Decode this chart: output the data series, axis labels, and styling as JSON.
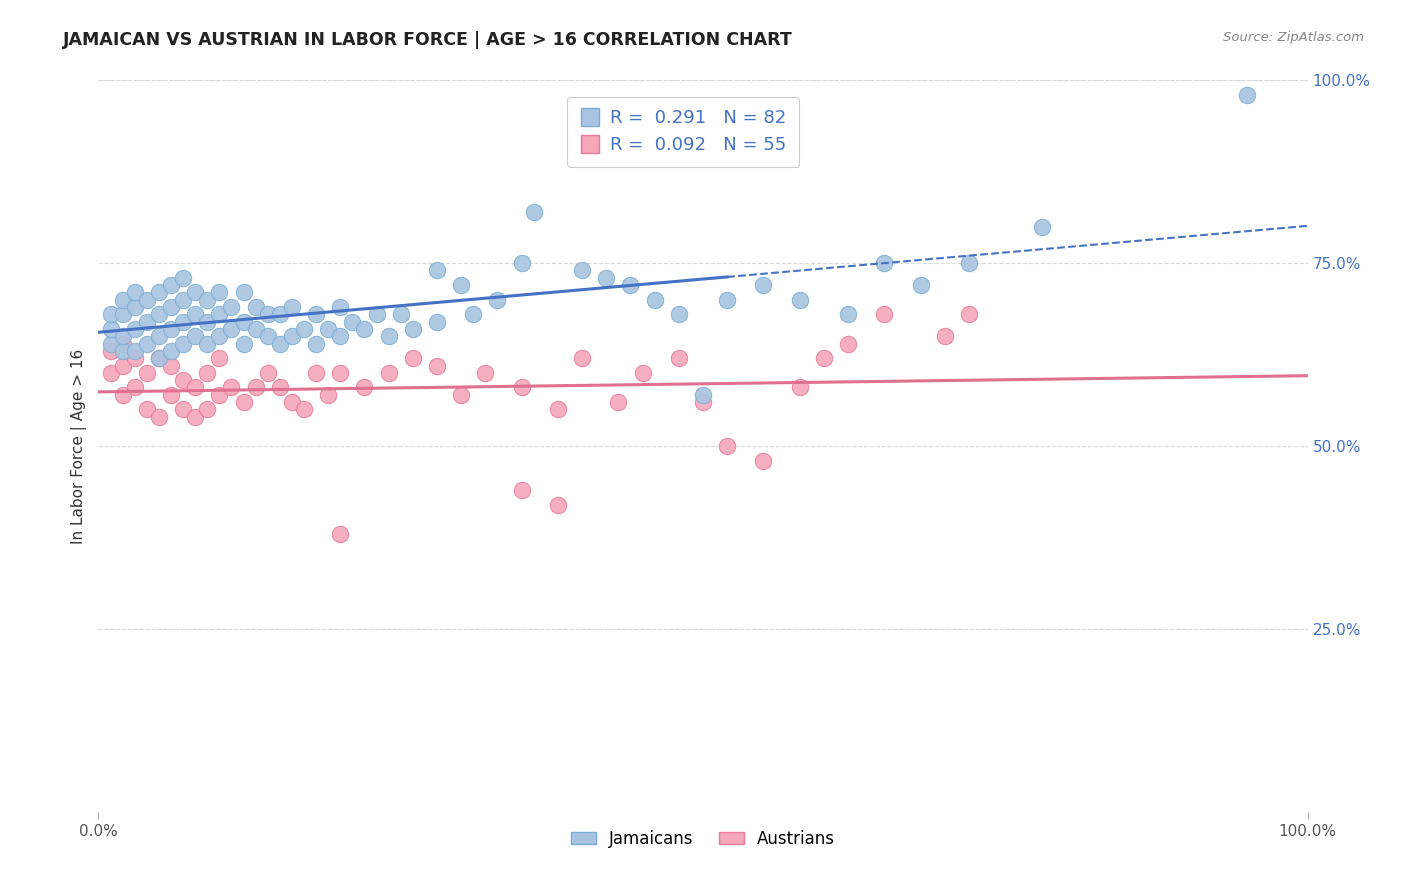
{
  "title": "JAMAICAN VS AUSTRIAN IN LABOR FORCE | AGE > 16 CORRELATION CHART",
  "source_text": "Source: ZipAtlas.com",
  "ylabel": "In Labor Force | Age > 16",
  "xlim": [
    0.0,
    1.0
  ],
  "ylim": [
    0.0,
    1.0
  ],
  "x_tick_labels": [
    "0.0%",
    "100.0%"
  ],
  "x_tick_positions": [
    0.0,
    1.0
  ],
  "y_tick_labels": [
    "25.0%",
    "50.0%",
    "75.0%",
    "100.0%"
  ],
  "y_tick_positions": [
    0.25,
    0.5,
    0.75,
    1.0
  ],
  "jamaican_color": "#a8c4e0",
  "austrian_color": "#f4a7b9",
  "jamaican_edge": "#7aadd4",
  "austrian_edge": "#e87a9a",
  "jamaican_line_color": "#4472c4",
  "austrian_line_color": "#e07090",
  "R_jamaican": 0.291,
  "N_jamaican": 82,
  "R_austrian": 0.092,
  "N_austrian": 55,
  "legend_label_jamaican": "Jamaicans",
  "legend_label_austrian": "Austrians",
  "background_color": "#ffffff",
  "grid_color": "#d8d8d8",
  "title_color": "#222222",
  "label_color": "#4472c4",
  "jamaican_scatter_x": [
    0.01,
    0.01,
    0.01,
    0.02,
    0.02,
    0.02,
    0.02,
    0.03,
    0.03,
    0.03,
    0.03,
    0.04,
    0.04,
    0.04,
    0.05,
    0.05,
    0.05,
    0.05,
    0.06,
    0.06,
    0.06,
    0.06,
    0.07,
    0.07,
    0.07,
    0.07,
    0.08,
    0.08,
    0.08,
    0.09,
    0.09,
    0.09,
    0.1,
    0.1,
    0.1,
    0.11,
    0.11,
    0.12,
    0.12,
    0.12,
    0.13,
    0.13,
    0.14,
    0.14,
    0.15,
    0.15,
    0.16,
    0.16,
    0.17,
    0.18,
    0.18,
    0.19,
    0.2,
    0.2,
    0.21,
    0.22,
    0.23,
    0.24,
    0.25,
    0.26,
    0.28,
    0.28,
    0.3,
    0.31,
    0.33,
    0.35,
    0.36,
    0.4,
    0.42,
    0.44,
    0.46,
    0.48,
    0.5,
    0.52,
    0.55,
    0.58,
    0.62,
    0.65,
    0.68,
    0.72,
    0.78,
    0.95
  ],
  "jamaican_scatter_y": [
    0.64,
    0.66,
    0.68,
    0.63,
    0.65,
    0.68,
    0.7,
    0.63,
    0.66,
    0.69,
    0.71,
    0.64,
    0.67,
    0.7,
    0.62,
    0.65,
    0.68,
    0.71,
    0.63,
    0.66,
    0.69,
    0.72,
    0.64,
    0.67,
    0.7,
    0.73,
    0.65,
    0.68,
    0.71,
    0.64,
    0.67,
    0.7,
    0.65,
    0.68,
    0.71,
    0.66,
    0.69,
    0.64,
    0.67,
    0.71,
    0.66,
    0.69,
    0.65,
    0.68,
    0.64,
    0.68,
    0.65,
    0.69,
    0.66,
    0.64,
    0.68,
    0.66,
    0.65,
    0.69,
    0.67,
    0.66,
    0.68,
    0.65,
    0.68,
    0.66,
    0.67,
    0.74,
    0.72,
    0.68,
    0.7,
    0.75,
    0.82,
    0.74,
    0.73,
    0.72,
    0.7,
    0.68,
    0.57,
    0.7,
    0.72,
    0.7,
    0.68,
    0.75,
    0.72,
    0.75,
    0.8,
    0.98
  ],
  "austrian_scatter_x": [
    0.01,
    0.01,
    0.02,
    0.02,
    0.02,
    0.03,
    0.03,
    0.04,
    0.04,
    0.05,
    0.05,
    0.06,
    0.06,
    0.07,
    0.07,
    0.08,
    0.08,
    0.09,
    0.09,
    0.1,
    0.1,
    0.11,
    0.12,
    0.13,
    0.14,
    0.15,
    0.16,
    0.17,
    0.18,
    0.19,
    0.2,
    0.22,
    0.24,
    0.26,
    0.28,
    0.3,
    0.32,
    0.35,
    0.38,
    0.4,
    0.43,
    0.45,
    0.48,
    0.5,
    0.52,
    0.55,
    0.58,
    0.6,
    0.62,
    0.65,
    0.7,
    0.72,
    0.2,
    0.35,
    0.38
  ],
  "austrian_scatter_y": [
    0.6,
    0.63,
    0.57,
    0.61,
    0.64,
    0.58,
    0.62,
    0.55,
    0.6,
    0.54,
    0.62,
    0.57,
    0.61,
    0.55,
    0.59,
    0.54,
    0.58,
    0.55,
    0.6,
    0.57,
    0.62,
    0.58,
    0.56,
    0.58,
    0.6,
    0.58,
    0.56,
    0.55,
    0.6,
    0.57,
    0.6,
    0.58,
    0.6,
    0.62,
    0.61,
    0.57,
    0.6,
    0.58,
    0.55,
    0.62,
    0.56,
    0.6,
    0.62,
    0.56,
    0.5,
    0.48,
    0.58,
    0.62,
    0.64,
    0.68,
    0.65,
    0.68,
    0.38,
    0.44,
    0.42
  ]
}
